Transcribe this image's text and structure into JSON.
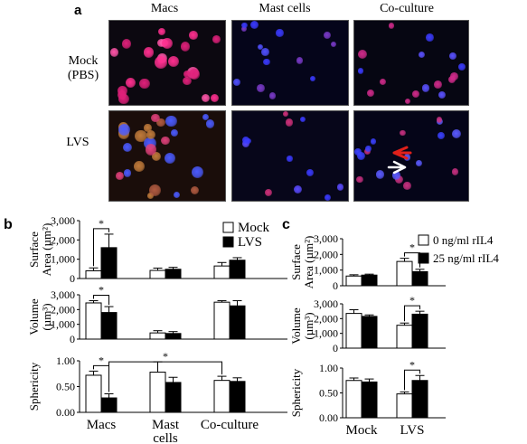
{
  "panel_a": {
    "letter": "a",
    "columns": [
      "Macs",
      "Mast cells",
      "Co-culture"
    ],
    "rows": [
      [
        "Mock",
        "(PBS)"
      ],
      [
        "LVS"
      ]
    ]
  },
  "panel_b": {
    "letter": "b",
    "legend": [
      "Mock",
      "LVS"
    ],
    "categories": [
      "Macs",
      [
        "Mast",
        "cells"
      ],
      "Co-culture"
    ]
  },
  "panel_c": {
    "letter": "c",
    "legend": [
      "0 ng/ml rIL4",
      "25 ng/ml rIL4"
    ],
    "categories": [
      "Mock",
      "LVS"
    ]
  },
  "colors": {
    "open_bar": "#ffffff",
    "filled_bar": "#000000",
    "red_arrow": "#e0201a",
    "white_arrow": "#ffffff"
  },
  "chart_data": [
    {
      "type": "bar",
      "panel": "b",
      "ylabel": [
        "Surface",
        "Area (µm²)"
      ],
      "categories": [
        "Macs",
        "Mast cells",
        "Co-culture"
      ],
      "ylim": [
        0,
        3000
      ],
      "yticks": [
        "0",
        "1,000",
        "2,000",
        "3,000"
      ],
      "ytick_values": [
        0,
        1000,
        2000,
        3000
      ],
      "series": [
        {
          "name": "Mock",
          "values": [
            400,
            420,
            650
          ],
          "errors": [
            150,
            120,
            180
          ]
        },
        {
          "name": "LVS",
          "values": [
            1600,
            480,
            950
          ],
          "errors": [
            700,
            100,
            130
          ]
        }
      ],
      "significance": [
        {
          "label": "*",
          "a": [
            0,
            0
          ],
          "b": [
            0,
            1
          ]
        }
      ]
    },
    {
      "type": "bar",
      "panel": "b",
      "ylabel": [
        "Volume",
        "(µm³)"
      ],
      "categories": [
        "Macs",
        "Mast cells",
        "Co-culture"
      ],
      "ylim": [
        0,
        3000
      ],
      "yticks": [
        "0",
        "1,000",
        "2,000",
        "3,000"
      ],
      "ytick_values": [
        0,
        1000,
        2000,
        3000
      ],
      "series": [
        {
          "name": "Mock",
          "values": [
            2450,
            420,
            2500
          ],
          "errors": [
            150,
            150,
            100
          ]
        },
        {
          "name": "LVS",
          "values": [
            1800,
            380,
            2250
          ],
          "errors": [
            400,
            130,
            350
          ]
        }
      ],
      "significance": [
        {
          "label": "*",
          "a": [
            0,
            0
          ],
          "b": [
            0,
            1
          ]
        }
      ]
    },
    {
      "type": "bar",
      "panel": "b",
      "ylabel": [
        "Sphericity"
      ],
      "categories": [
        "Macs",
        "Mast cells",
        "Co-culture"
      ],
      "ylim": [
        0,
        1.0
      ],
      "yticks": [
        "0.00",
        "0.50",
        "1.00"
      ],
      "ytick_values": [
        0,
        0.5,
        1.0
      ],
      "series": [
        {
          "name": "Mock",
          "values": [
            0.72,
            0.78,
            0.62
          ],
          "errors": [
            0.08,
            0.2,
            0.08
          ]
        },
        {
          "name": "LVS",
          "values": [
            0.28,
            0.58,
            0.6
          ],
          "errors": [
            0.08,
            0.1,
            0.07
          ]
        }
      ],
      "significance": [
        {
          "label": "*",
          "a": [
            0,
            0
          ],
          "b": [
            0,
            1
          ]
        },
        {
          "label": "*",
          "a": [
            0,
            1
          ],
          "b": [
            2,
            0
          ]
        }
      ]
    },
    {
      "type": "bar",
      "panel": "c",
      "ylabel": [
        "Surface",
        "Area (µm²)"
      ],
      "categories": [
        "Mock",
        "LVS"
      ],
      "ylim": [
        0,
        3000
      ],
      "yticks": [
        "0",
        "1,000",
        "2,000",
        "3,000"
      ],
      "ytick_values": [
        0,
        1000,
        2000,
        3000
      ],
      "series": [
        {
          "name": "0 ng/ml rIL4",
          "values": [
            620,
            1550
          ],
          "errors": [
            80,
            200
          ]
        },
        {
          "name": "25 ng/ml rIL4",
          "values": [
            680,
            900
          ],
          "errors": [
            60,
            150
          ]
        }
      ],
      "significance": [
        {
          "label": "*",
          "a": [
            1,
            0
          ],
          "b": [
            1,
            1
          ]
        }
      ]
    },
    {
      "type": "bar",
      "panel": "c",
      "ylabel": [
        "Volume",
        "(µm³)"
      ],
      "categories": [
        "Mock",
        "LVS"
      ],
      "ylim": [
        0,
        3000
      ],
      "yticks": [
        "0",
        "1,000",
        "2,000",
        "3,000"
      ],
      "ytick_values": [
        0,
        1000,
        2000,
        3000
      ],
      "series": [
        {
          "name": "0 ng/ml rIL4",
          "values": [
            2350,
            1550
          ],
          "errors": [
            250,
            150
          ]
        },
        {
          "name": "25 ng/ml rIL4",
          "values": [
            2150,
            2300
          ],
          "errors": [
            100,
            200
          ]
        }
      ],
      "significance": [
        {
          "label": "*",
          "a": [
            1,
            0
          ],
          "b": [
            1,
            1
          ]
        }
      ]
    },
    {
      "type": "bar",
      "panel": "c",
      "ylabel": [
        "Sphericity"
      ],
      "categories": [
        "Mock",
        "LVS"
      ],
      "ylim": [
        0,
        1.0
      ],
      "yticks": [
        "0.00",
        "0.50",
        "1.00"
      ],
      "ytick_values": [
        0,
        0.5,
        1.0
      ],
      "series": [
        {
          "name": "0 ng/ml rIL4",
          "values": [
            0.75,
            0.48
          ],
          "errors": [
            0.05,
            0.04
          ]
        },
        {
          "name": "25 ng/ml rIL4",
          "values": [
            0.72,
            0.75
          ],
          "errors": [
            0.06,
            0.1
          ]
        }
      ],
      "significance": [
        {
          "label": "*",
          "a": [
            1,
            0
          ],
          "b": [
            1,
            1
          ]
        }
      ]
    }
  ]
}
